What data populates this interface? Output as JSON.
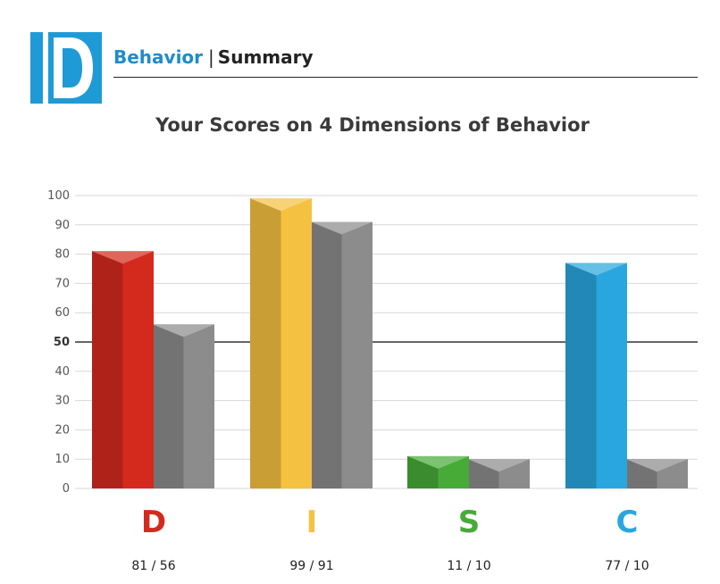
{
  "header": {
    "logo_letter": "D",
    "section": "Behavior",
    "separator": "|",
    "page": "Summary"
  },
  "chart_data": {
    "type": "bar",
    "title": "Your Scores on 4 Dimensions of Behavior",
    "categories": [
      "D",
      "I",
      "S",
      "C"
    ],
    "category_colors": [
      "#d42a1e",
      "#f5c141",
      "#47ab38",
      "#2aa6de"
    ],
    "series": [
      {
        "values": [
          81,
          99,
          11,
          77
        ]
      },
      {
        "values": [
          56,
          91,
          10,
          10
        ]
      }
    ],
    "score_labels": [
      "81 / 56",
      "99 / 91",
      "11 / 10",
      "77 / 10"
    ],
    "yticks": [
      0,
      10,
      20,
      30,
      40,
      50,
      60,
      70,
      80,
      90,
      100
    ],
    "highlight_tick": 50,
    "ylim": [
      0,
      100
    ],
    "grid": true
  },
  "colors": {
    "accent": "#1e8ccc",
    "gray_bar": "#8c8c8c"
  }
}
